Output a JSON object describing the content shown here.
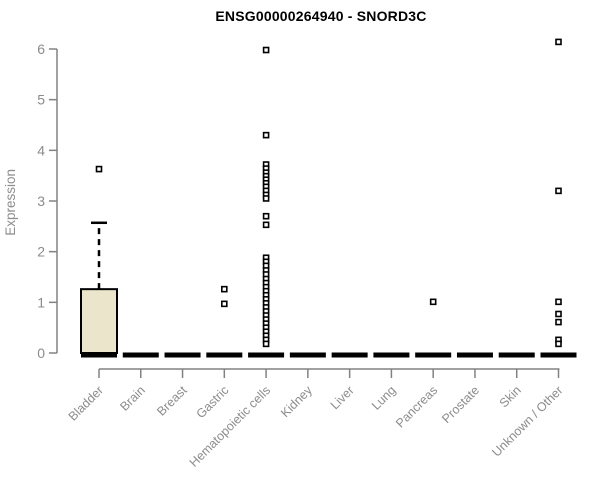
{
  "figure": {
    "background": "#ffffff"
  },
  "chart_data": {
    "type": "boxplot",
    "title": "ENSG00000264940 - SNORD3C",
    "xlabel": "",
    "ylabel": "Expression",
    "ylim": [
      0,
      6
    ],
    "yticks": [
      0,
      1,
      2,
      3,
      4,
      5,
      6
    ],
    "grid": false,
    "legend": "none",
    "marker": "open-square",
    "categories": [
      "Bladder",
      "Brain",
      "Breast",
      "Gastric",
      "Hematopoietic cells",
      "Kidney",
      "Liver",
      "Lung",
      "Pancreas",
      "Prostate",
      "Skin",
      "Unknown / Other"
    ],
    "series": [
      {
        "category": "Bladder",
        "q1": 0,
        "median": 0,
        "q3": 1.26,
        "whisker_low": 0,
        "whisker_high": 2.57,
        "outliers": [
          3.63
        ]
      },
      {
        "category": "Brain",
        "q1": 0,
        "median": 0,
        "q3": 0,
        "whisker_low": 0,
        "whisker_high": 0,
        "outliers": []
      },
      {
        "category": "Breast",
        "q1": 0,
        "median": 0,
        "q3": 0,
        "whisker_low": 0,
        "whisker_high": 0,
        "outliers": []
      },
      {
        "category": "Gastric",
        "q1": 0,
        "median": 0,
        "q3": 0,
        "whisker_low": 0,
        "whisker_high": 0,
        "outliers": [
          1.26,
          0.97
        ]
      },
      {
        "category": "Hematopoietic cells",
        "q1": 0,
        "median": 0,
        "q3": 0,
        "whisker_low": 0,
        "whisker_high": 0,
        "outliers": [
          5.98,
          4.3,
          3.72,
          3.64,
          3.56,
          3.49,
          3.42,
          3.35,
          3.28,
          3.2,
          3.12,
          3.05,
          2.7,
          2.53,
          1.88,
          1.8,
          1.72,
          1.63,
          1.55,
          1.46,
          1.38,
          1.3,
          1.22,
          1.14,
          1.06,
          0.98,
          0.9,
          0.82,
          0.74,
          0.66,
          0.58,
          0.5,
          0.42,
          0.34,
          0.26,
          0.18
        ]
      },
      {
        "category": "Kidney",
        "q1": 0,
        "median": 0,
        "q3": 0,
        "whisker_low": 0,
        "whisker_high": 0,
        "outliers": []
      },
      {
        "category": "Liver",
        "q1": 0,
        "median": 0,
        "q3": 0,
        "whisker_low": 0,
        "whisker_high": 0,
        "outliers": []
      },
      {
        "category": "Lung",
        "q1": 0,
        "median": 0,
        "q3": 0,
        "whisker_low": 0,
        "whisker_high": 0,
        "outliers": []
      },
      {
        "category": "Pancreas",
        "q1": 0,
        "median": 0,
        "q3": 0,
        "whisker_low": 0,
        "whisker_high": 0,
        "outliers": [
          1.01
        ]
      },
      {
        "category": "Prostate",
        "q1": 0,
        "median": 0,
        "q3": 0,
        "whisker_low": 0,
        "whisker_high": 0,
        "outliers": []
      },
      {
        "category": "Skin",
        "q1": 0,
        "median": 0,
        "q3": 0,
        "whisker_low": 0,
        "whisker_high": 0,
        "outliers": []
      },
      {
        "category": "Unknown / Other",
        "q1": 0,
        "median": 0,
        "q3": 0,
        "whisker_low": 0,
        "whisker_high": 0,
        "outliers": [
          6.14,
          3.2,
          1.01,
          0.77,
          0.61,
          0.26,
          0.18
        ]
      }
    ],
    "colors": {
      "box_fill": "#EBE6CB",
      "box_border": "#000000",
      "median": "#000000",
      "whisker": "#000000",
      "outlier": "#000000",
      "axis": "#828282",
      "tick_labels": "#8c8c8c",
      "title": "#000000"
    }
  }
}
